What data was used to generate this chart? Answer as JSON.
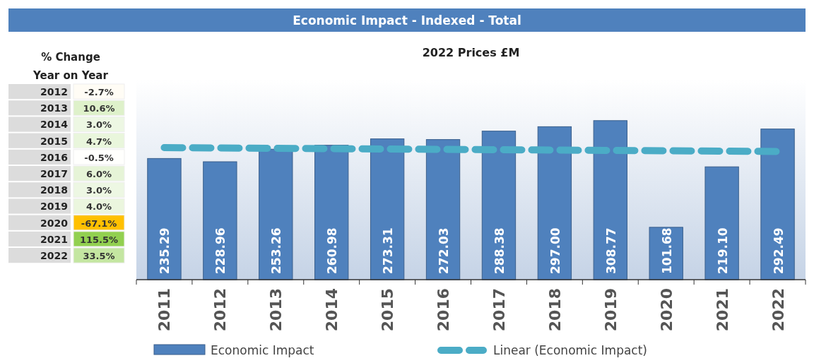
{
  "chart_data": [
    {
      "type": "bar",
      "title": "Economic Impact - Indexed - Total",
      "subtitle": "2022 Prices £M",
      "categories": [
        "2011",
        "2012",
        "2013",
        "2014",
        "2015",
        "2016",
        "2017",
        "2018",
        "2019",
        "2020",
        "2021",
        "2022"
      ],
      "series": [
        {
          "name": "Economic Impact",
          "type": "bar",
          "color": "#4f81bd",
          "values": [
            235.29,
            228.96,
            253.26,
            260.98,
            273.31,
            272.03,
            288.38,
            297.0,
            308.77,
            101.68,
            219.1,
            292.49
          ],
          "value_labels": [
            "235.29",
            "228.96",
            "253.26",
            "260.98",
            "273.31",
            "272.03",
            "288.38",
            "297.00",
            "308.77",
            "101.68",
            "219.10",
            "292.49"
          ]
        },
        {
          "name": "Linear (Economic Impact)",
          "type": "line",
          "color": "#4bacc6",
          "line_style": "dashed",
          "values": [
            256.3,
            255.6,
            254.9,
            254.3,
            253.6,
            252.9,
            252.3,
            251.6,
            250.9,
            250.2,
            249.6,
            248.9
          ]
        }
      ],
      "ylim": [
        0,
        388
      ],
      "tick_labels": "x",
      "legend": "bottom"
    },
    {
      "type": "heatmap",
      "title": "% Change\nYear on Year",
      "categories": [
        null
      ],
      "y_categories": [
        "2012",
        "2013",
        "2014",
        "2015",
        "2016",
        "2017",
        "2018",
        "2019",
        "2020",
        "2021",
        "2022"
      ],
      "cells": [
        [
          -2.7
        ],
        [
          10.6
        ],
        [
          3.0
        ],
        [
          4.7
        ],
        [
          -0.5
        ],
        [
          6.0
        ],
        [
          3.0
        ],
        [
          4.0
        ],
        [
          -67.1
        ],
        [
          115.5
        ],
        [
          33.5
        ]
      ],
      "cell_labels": [
        [
          "-2.7%"
        ],
        [
          "10.6%"
        ],
        [
          "3.0%"
        ],
        [
          "4.7%"
        ],
        [
          "-0.5%"
        ],
        [
          "6.0%"
        ],
        [
          "3.0%"
        ],
        [
          "4.0%"
        ],
        [
          "-67.1%"
        ],
        [
          "115.5%"
        ],
        [
          "33.5%"
        ]
      ]
    }
  ]
}
